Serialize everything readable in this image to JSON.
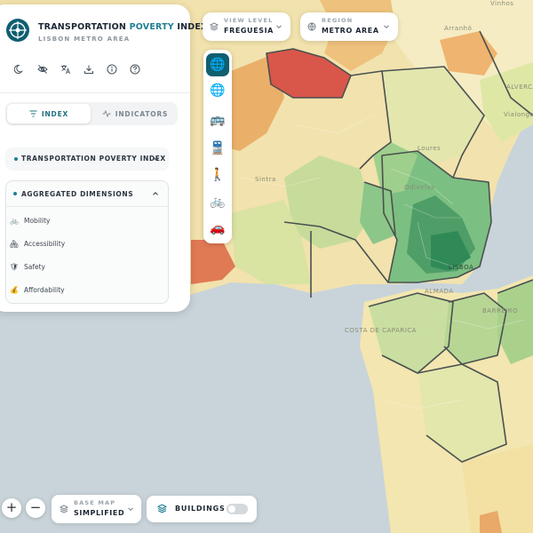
{
  "app": {
    "title_main": "TRANSPORTATION",
    "title_accent": "POVERTY",
    "title_end": "INDEX",
    "subtitle": "LISBON METRO AREA"
  },
  "toolbar_icons": [
    "moon-icon",
    "eye-off-icon",
    "translate-icon",
    "download-icon",
    "info-icon",
    "help-icon"
  ],
  "tabs": [
    {
      "label": "INDEX",
      "icon": "filter-icon",
      "active": true
    },
    {
      "label": "INDICATORS",
      "icon": "pulse-icon",
      "active": false
    }
  ],
  "sections": {
    "index": {
      "title": "TRANSPORTATION POVERTY INDEX",
      "expanded": false
    },
    "dimensions": {
      "title": "AGGREGATED DIMENSIONS",
      "expanded": true,
      "items": [
        {
          "label": "Mobility",
          "icon": "🚲"
        },
        {
          "label": "Accessibility",
          "icon": "🏘"
        },
        {
          "label": "Safety",
          "icon": "🛡"
        },
        {
          "label": "Affordability",
          "icon": "💰"
        }
      ]
    }
  },
  "view_level": {
    "label": "VIEW LEVEL",
    "value": "FREGUESIA"
  },
  "region": {
    "label": "REGION",
    "value": "METRO AREA"
  },
  "modes": [
    {
      "name": "all-modes",
      "glyph": "🌐",
      "active": true
    },
    {
      "name": "public-transport",
      "glyph": "🌐",
      "active": false
    },
    {
      "name": "bus",
      "glyph": "🚌",
      "active": false
    },
    {
      "name": "train",
      "glyph": "🚆",
      "active": false
    },
    {
      "name": "walking",
      "glyph": "🚶",
      "active": false
    },
    {
      "name": "cycling",
      "glyph": "🚲",
      "active": false
    },
    {
      "name": "car",
      "glyph": "🚗",
      "active": false
    }
  ],
  "zoom": {
    "in": "+",
    "out": "−"
  },
  "base_map": {
    "label": "BASE MAP",
    "value": "SIMPLIFIED"
  },
  "buildings": {
    "label": "BUILDINGS",
    "enabled": false
  },
  "map_labels": [
    "Vinhos",
    "Arranhó",
    "ALVERCA",
    "Vialonga",
    "Loures",
    "Sintra",
    "Odivelas",
    "LISBOA",
    "ALMADA",
    "COSTA DE CAPARICA",
    "BARREIRO"
  ],
  "colors": {
    "accent": "#1f7f93",
    "brand_dark": "#0f5f70",
    "water": "#c9d4da",
    "index_high": "#d9534a",
    "index_mid": "#f3dca0",
    "index_low": "#2f8a57"
  }
}
